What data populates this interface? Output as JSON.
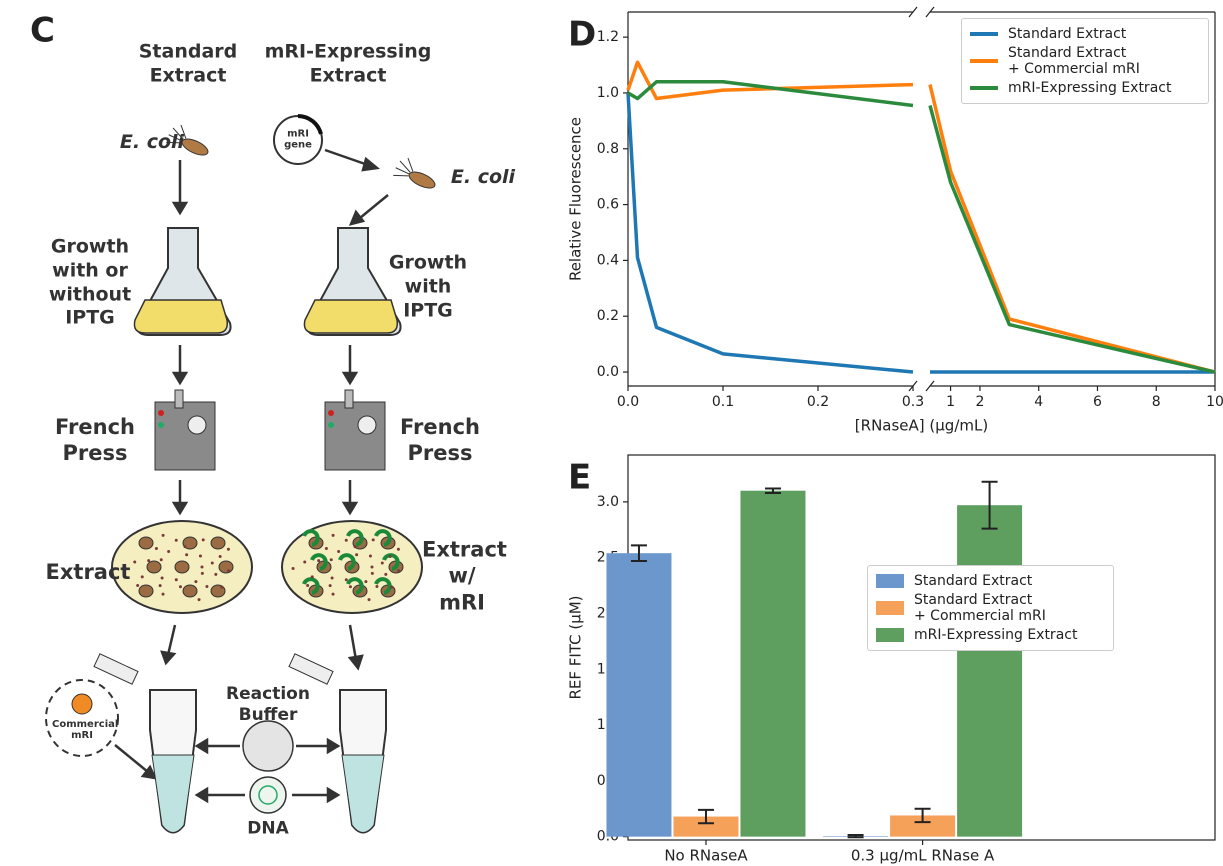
{
  "diagram": {
    "panel_label": "C",
    "columns": [
      "Standard Extract",
      "mRI-Expressing Extract"
    ],
    "organism": "E. coli",
    "plasmid": "mRI gene",
    "growth": [
      "Growth with or without IPTG",
      "Growth with IPTG"
    ],
    "press": "French Press",
    "extracts": [
      "Extract",
      "Extract w/ mRI"
    ],
    "additive": "Commercial mRI",
    "buffer": "Reaction Buffer",
    "dna": "DNA"
  },
  "chart_data": [
    {
      "type": "line",
      "panel_label": "D",
      "xlabel": "[RNaseA] (μg/mL)",
      "ylabel": "Relative Fluorescence",
      "x": [
        0,
        0.01,
        0.03,
        0.1,
        0.3,
        1,
        3,
        10
      ],
      "xlim": [
        0,
        0.3
      ],
      "xticks": [
        {
          "value": 0,
          "label": "0.0"
        },
        0.1,
        0.2,
        0.3
      ],
      "x2lim": [
        0.3,
        10
      ],
      "x2ticks": [
        1,
        2,
        4,
        6,
        8,
        10
      ],
      "ylim": [
        -0.05,
        1.29
      ],
      "yticks": [
        {
          "value": 0,
          "label": "0.0"
        },
        0.2,
        0.4,
        0.6,
        0.8,
        {
          "value": 1,
          "label": "1.0"
        },
        1.2
      ],
      "legend": "upper right",
      "series": [
        {
          "name": "Standard Extract",
          "color": "#1f77b4",
          "values": [
            1.0,
            0.41,
            0.16,
            0.065,
            0.0,
            0.0,
            0.0,
            0.0
          ]
        },
        {
          "name": "Standard Extract\n+ Commercial mRI",
          "color": "#ff7f0e",
          "values": [
            1.01,
            1.11,
            0.98,
            1.01,
            1.03,
            0.72,
            0.19,
            0.0
          ]
        },
        {
          "name": "mRI-Expressing Extract",
          "color": "#2c8a3c",
          "values": [
            1.0,
            0.98,
            1.04,
            1.04,
            0.955,
            0.68,
            0.17,
            0.0
          ]
        }
      ]
    },
    {
      "type": "bar",
      "panel_label": "E",
      "ylabel": "REF FITC (μM)",
      "categories": [
        "No RNaseA",
        "0.3 μg/mL RNase A"
      ],
      "ylim": [
        -0.03,
        3.42
      ],
      "yticks": [
        {
          "value": 0,
          "label": "0.0"
        },
        0.5,
        {
          "value": 1,
          "label": "1.0"
        },
        1.5,
        {
          "value": 2,
          "label": "2.0"
        },
        2.5,
        {
          "value": 3,
          "label": "3.0"
        }
      ],
      "legend": "center right",
      "series": [
        {
          "name": "Standard Extract",
          "color": "#6b97cc",
          "values": [
            2.54,
            0.005
          ],
          "errors": [
            0.07,
            0.01
          ]
        },
        {
          "name": "Standard Extract\n+ Commercial mRI",
          "color": "#f6a15a",
          "values": [
            0.18,
            0.19
          ],
          "errors": [
            0.06,
            0.06
          ]
        },
        {
          "name": "mRI-Expressing Extract",
          "color": "#5e9e5e",
          "values": [
            3.1,
            2.97
          ],
          "errors": [
            0.02,
            0.21
          ]
        }
      ]
    }
  ]
}
